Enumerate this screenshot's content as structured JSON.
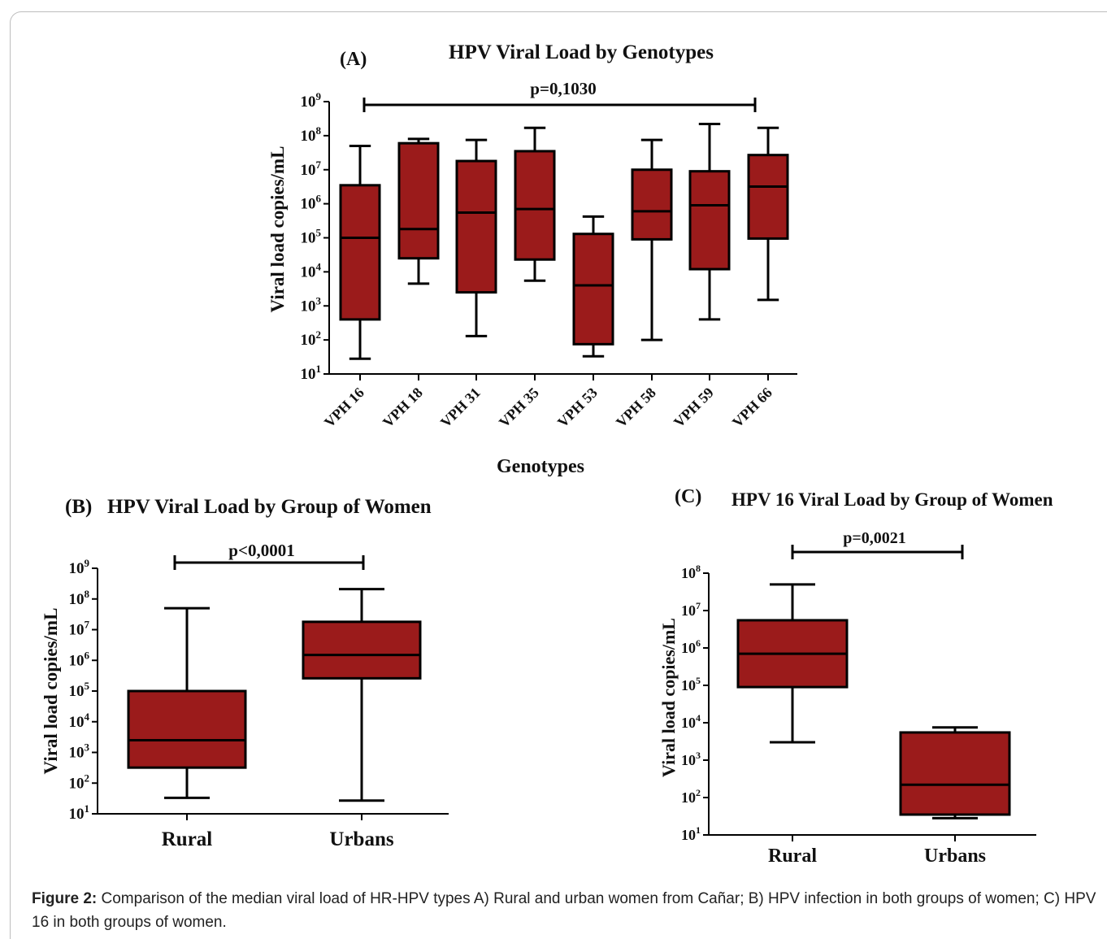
{
  "colors": {
    "box_fill": "#9b1b1b",
    "stroke": "#000000"
  },
  "chart_data": [
    {
      "type": "box",
      "panel": "(A)",
      "title": "HPV Viral Load by Genotypes",
      "xlabel": "Genotypes",
      "ylabel": "Viral load copies/mL",
      "yscale": "log10",
      "ylim_exp": [
        1,
        9
      ],
      "yticks": [
        "10",
        "10",
        "10",
        "10",
        "10",
        "10",
        "10",
        "10",
        "10"
      ],
      "ytick_exponents": [
        "1",
        "2",
        "3",
        "4",
        "5",
        "6",
        "7",
        "8",
        "9"
      ],
      "categories": [
        "VPH 16",
        "VPH 18",
        "VPH 31",
        "VPH 35",
        "VPH 53",
        "VPH 58",
        "VPH 59",
        "VPH 66"
      ],
      "boxes": [
        {
          "min": 28,
          "q1": 400,
          "median": 100000,
          "q3": 3500000,
          "max": 50000000
        },
        {
          "min": 4500,
          "q1": 25000,
          "median": 180000,
          "q3": 60000000,
          "max": 80000000
        },
        {
          "min": 130,
          "q1": 2500,
          "median": 550000,
          "q3": 18000000,
          "max": 75000000
        },
        {
          "min": 5500,
          "q1": 23000,
          "median": 700000,
          "q3": 35000000,
          "max": 170000000
        },
        {
          "min": 33,
          "q1": 75,
          "median": 4000,
          "q3": 130000,
          "max": 420000
        },
        {
          "min": 100,
          "q1": 90000,
          "median": 600000,
          "q3": 10000000,
          "max": 75000000
        },
        {
          "min": 400,
          "q1": 12000,
          "median": 900000,
          "q3": 9000000,
          "max": 220000000
        },
        {
          "min": 1500,
          "q1": 95000,
          "median": 3200000,
          "q3": 27000000,
          "max": 170000000
        }
      ],
      "annotation": "p=0,1030"
    },
    {
      "type": "box",
      "panel": "(B)",
      "title": "HPV Viral Load by Group of Women",
      "xlabel": "",
      "ylabel": "Viral load copies/mL",
      "yscale": "log10",
      "ylim_exp": [
        1,
        9
      ],
      "yticks": [
        "10",
        "10",
        "10",
        "10",
        "10",
        "10",
        "10",
        "10",
        "10"
      ],
      "ytick_exponents": [
        "1",
        "2",
        "3",
        "4",
        "5",
        "6",
        "7",
        "8",
        "9"
      ],
      "categories": [
        "Rural",
        "Urbans"
      ],
      "boxes": [
        {
          "min": 33,
          "q1": 320,
          "median": 2500,
          "q3": 100000,
          "max": 50000000
        },
        {
          "min": 27,
          "q1": 260000,
          "median": 1500000,
          "q3": 18000000,
          "max": 210000000
        }
      ],
      "annotation": "p<0,0001"
    },
    {
      "type": "box",
      "panel": "(C)",
      "title": "HPV 16 Viral Load by Group of Women",
      "xlabel": "",
      "ylabel": "Viral load copies/mL",
      "yscale": "log10",
      "ylim_exp": [
        1,
        8
      ],
      "yticks": [
        "10",
        "10",
        "10",
        "10",
        "10",
        "10",
        "10",
        "10"
      ],
      "ytick_exponents": [
        "1",
        "2",
        "3",
        "4",
        "5",
        "6",
        "7",
        "8"
      ],
      "categories": [
        "Rural",
        "Urbans"
      ],
      "boxes": [
        {
          "min": 3000,
          "q1": 90000,
          "median": 700000,
          "q3": 5500000,
          "max": 50000000
        },
        {
          "min": 28,
          "q1": 35,
          "median": 220,
          "q3": 5500,
          "max": 7500
        }
      ],
      "annotation": "p=0,0021"
    }
  ],
  "caption": {
    "label": "Figure 2:",
    "text": " Comparison of the median viral load of HR-HPV types A) Rural and urban women from Cañar; B) HPV infection in both groups of women; C) HPV 16 in both groups of women."
  }
}
